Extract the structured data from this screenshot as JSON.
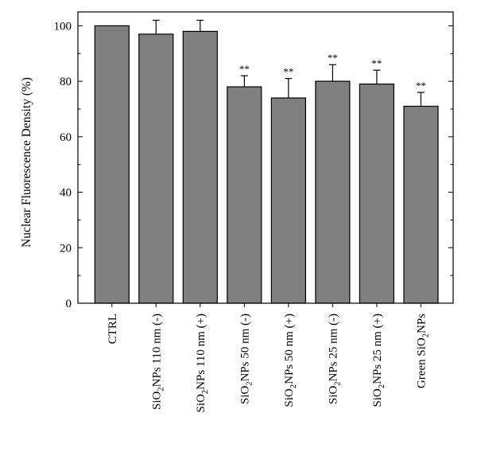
{
  "chart_data": {
    "type": "bar",
    "categories": [
      {
        "id": "CTRL",
        "parts": [
          {
            "t": "CTRL"
          }
        ]
      },
      {
        "id": "SiO2NPs 110 nm (-)",
        "parts": [
          {
            "t": "SiO"
          },
          {
            "t": "2",
            "sub": true
          },
          {
            "t": "NPs 110 nm (-)"
          }
        ]
      },
      {
        "id": "SiO2NPs 110 nm (+)",
        "parts": [
          {
            "t": "SiO"
          },
          {
            "t": "2",
            "sub": true
          },
          {
            "t": "NPs 110 nm (+)"
          }
        ]
      },
      {
        "id": "SiO2NPs 50 nm (-)",
        "parts": [
          {
            "t": "SiO"
          },
          {
            "t": "2",
            "sub": true
          },
          {
            "t": "NPs 50 nm (-)"
          }
        ]
      },
      {
        "id": "SiO2NPs 50 nm (+)",
        "parts": [
          {
            "t": "SiO"
          },
          {
            "t": "2",
            "sub": true
          },
          {
            "t": "NPs 50 nm (+)"
          }
        ]
      },
      {
        "id": "SiO2NPs 25 nm (-)",
        "parts": [
          {
            "t": "SiO"
          },
          {
            "t": "2",
            "sub": true
          },
          {
            "t": "NPs 25 nm (-)"
          }
        ]
      },
      {
        "id": "SiO2NPs 25 nm (+)",
        "parts": [
          {
            "t": "SiO"
          },
          {
            "t": "2",
            "sub": true
          },
          {
            "t": "NPs 25 nm (+)"
          }
        ]
      },
      {
        "id": "Green SiO2NPs",
        "parts": [
          {
            "t": "Green SiO"
          },
          {
            "t": "2",
            "sub": true
          },
          {
            "t": "NPs"
          }
        ]
      }
    ],
    "values": [
      100,
      97,
      98,
      78,
      74,
      80,
      79,
      71
    ],
    "errors": [
      0,
      5,
      4,
      4,
      7,
      6,
      5,
      5
    ],
    "significance": [
      "",
      "",
      "",
      "**",
      "**",
      "**",
      "**",
      "**"
    ],
    "ylabel": "Nuclear Fluorescence Density (%)",
    "xlabel": "",
    "title": "",
    "ylim": [
      0,
      105
    ],
    "yticks": [
      0,
      20,
      40,
      60,
      80,
      100
    ],
    "grid": false,
    "bar_color": "#808080"
  }
}
